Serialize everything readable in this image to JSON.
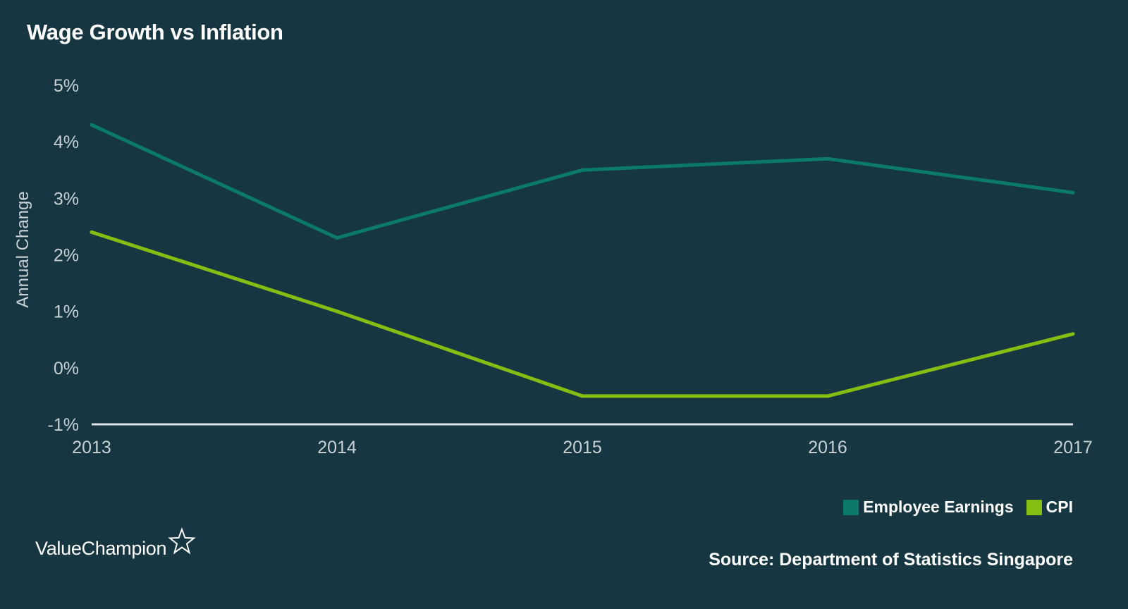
{
  "colors": {
    "background": "#163642",
    "employee_earnings": "#0b7a6a",
    "cpi": "#86bd12",
    "axis_line": "#dfe3e4",
    "tick_text": "#c9d1d4"
  },
  "brand": {
    "name": "ValueChampion",
    "icon": "star-outline-icon"
  },
  "source": "Source: Department of Statistics Singapore",
  "chart_data": {
    "type": "line",
    "title": "Wage Growth vs Inflation",
    "xlabel": "",
    "ylabel": "Annual Change",
    "x": [
      "2013",
      "2014",
      "2015",
      "2016",
      "2017"
    ],
    "y_ticks": [
      "5%",
      "4%",
      "3%",
      "2%",
      "1%",
      "0%",
      "-1%"
    ],
    "y_tick_values": [
      5,
      4,
      3,
      2,
      1,
      0,
      -1
    ],
    "ylim": [
      -1,
      5
    ],
    "grid": false,
    "legend_position": "bottom-right",
    "series": [
      {
        "name": "Employee Earnings",
        "color": "#0b7a6a",
        "values": [
          4.3,
          2.3,
          3.5,
          3.7,
          3.1
        ]
      },
      {
        "name": "CPI",
        "color": "#86bd12",
        "values": [
          2.4,
          1.0,
          -0.5,
          -0.5,
          0.6
        ]
      }
    ]
  }
}
